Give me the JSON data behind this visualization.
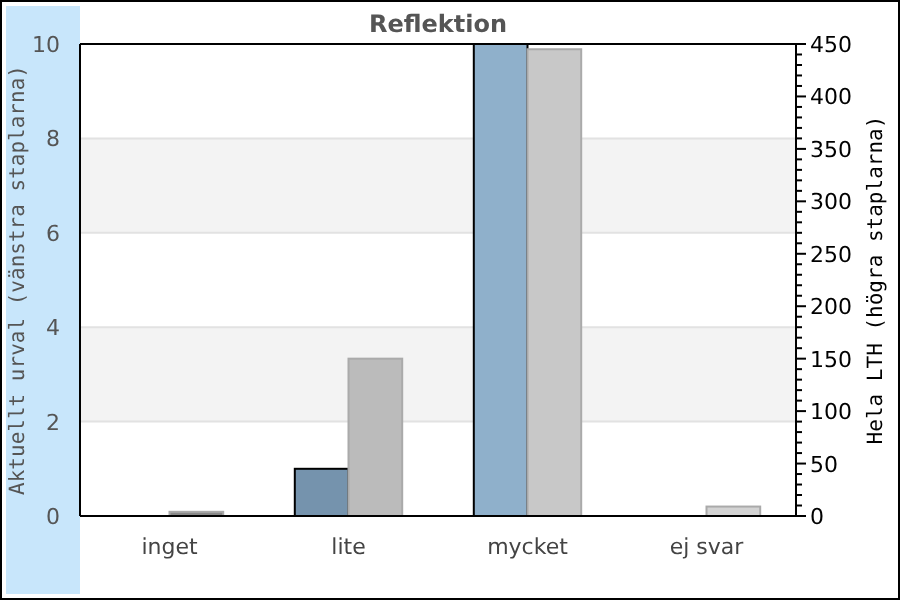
{
  "chart_data": {
    "type": "bar",
    "title": "Reflektion",
    "ylabel": "Aktuellt urval (vänstra staplarna)",
    "y2label": "Hela LTH (högra staplarna)",
    "categories": [
      "inget",
      "lite",
      "mycket",
      "ej svar"
    ],
    "series": [
      {
        "values": [
          0,
          1,
          10,
          0
        ],
        "colors": [
          "#8fb0cb",
          "#7593ad",
          "#8fb0cb",
          "#8fb0cb"
        ]
      },
      {
        "values": [
          4,
          150,
          445,
          9
        ],
        "axis": "y2",
        "colors": [
          "#888888",
          "#bbbbbb",
          "#c8c8c8",
          "#d3d3d3"
        ]
      }
    ],
    "ylim": [
      0,
      10
    ],
    "yticks": [
      0,
      2,
      4,
      6,
      8,
      10
    ],
    "y2lim": [
      0,
      450
    ],
    "y2ticks": [
      0,
      {
        "value": 10,
        "label": null
      },
      {
        "value": 20,
        "label": null
      },
      {
        "value": 30,
        "label": null
      },
      {
        "value": 40,
        "label": null
      },
      50,
      {
        "value": 60,
        "label": null
      },
      {
        "value": 70,
        "label": null
      },
      {
        "value": 80,
        "label": null
      },
      {
        "value": 90,
        "label": null
      },
      100,
      {
        "value": 110,
        "label": null
      },
      {
        "value": 120,
        "label": null
      },
      {
        "value": 130,
        "label": null
      },
      {
        "value": 140,
        "label": null
      },
      150,
      {
        "value": 160,
        "label": null
      },
      {
        "value": 170,
        "label": null
      },
      {
        "value": 180,
        "label": null
      },
      {
        "value": 190,
        "label": null
      },
      200,
      {
        "value": 210,
        "label": null
      },
      {
        "value": 220,
        "label": null
      },
      {
        "value": 230,
        "label": null
      },
      {
        "value": 240,
        "label": null
      },
      250,
      {
        "value": 260,
        "label": null
      },
      {
        "value": 270,
        "label": null
      },
      {
        "value": 280,
        "label": null
      },
      {
        "value": 290,
        "label": null
      },
      300,
      {
        "value": 310,
        "label": null
      },
      {
        "value": 320,
        "label": null
      },
      {
        "value": 330,
        "label": null
      },
      {
        "value": 340,
        "label": null
      },
      350,
      {
        "value": 360,
        "label": null
      },
      {
        "value": 370,
        "label": null
      },
      {
        "value": 380,
        "label": null
      },
      {
        "value": 390,
        "label": null
      },
      400,
      {
        "value": 410,
        "label": null
      },
      {
        "value": 420,
        "label": null
      },
      {
        "value": 430,
        "label": null
      },
      {
        "value": 440,
        "label": null
      },
      450
    ],
    "bands": [
      {
        "axis": "y",
        "from": 2,
        "to": 4,
        "color": "#f3f3f3"
      },
      {
        "axis": "y",
        "from": 6,
        "to": 8,
        "color": "#f3f3f3"
      }
    ],
    "grid": "y"
  }
}
